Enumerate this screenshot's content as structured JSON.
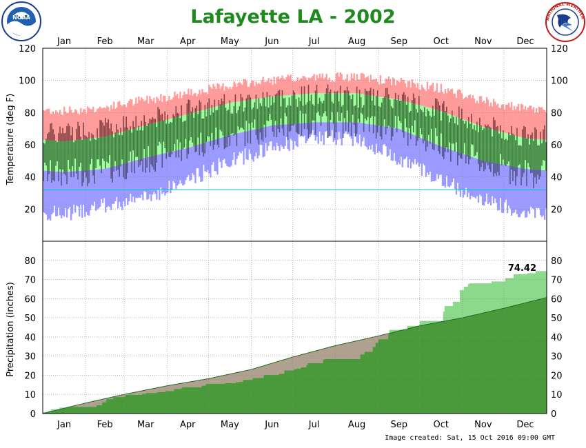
{
  "title": "Lafayette LA - 2002",
  "footer": "Image created: Sat, 15 Oct 2016 09:00 GMT",
  "logos": {
    "noaa": {
      "text": "NOAA",
      "icon": "noaa-logo-icon"
    },
    "nws": {
      "text": "NATIONAL WEATHER SERVICE",
      "icon": "nws-logo-icon"
    }
  },
  "chart_data": [
    {
      "type": "bar",
      "name": "temperature",
      "ylabel": "Temperature (deg F)",
      "ylim": [
        0,
        120
      ],
      "yticks": [
        20,
        40,
        60,
        80,
        100,
        120
      ],
      "months": [
        "Jan",
        "Feb",
        "Mar",
        "Apr",
        "May",
        "Jun",
        "Jul",
        "Aug",
        "Sep",
        "Oct",
        "Nov",
        "Dec"
      ],
      "grid": true,
      "freezing_line": 32,
      "colors": {
        "record_high": "#ff9b9b",
        "normal": "#a0ffa0",
        "record_low": "#9a9aff",
        "observed_low_dark": "#555588",
        "observed_high_dark": "#884444",
        "observed_normal": "#3c7a3c",
        "freeze_line": "#00c8c8"
      },
      "monthly_normals": {
        "normal_high": [
          62,
          65,
          72,
          79,
          86,
          90,
          92,
          92,
          88,
          81,
          71,
          64
        ],
        "normal_low": [
          43,
          45,
          52,
          58,
          66,
          72,
          74,
          74,
          70,
          59,
          50,
          45
        ],
        "record_high": [
          81,
          83,
          88,
          92,
          97,
          100,
          102,
          102,
          99,
          95,
          87,
          82
        ],
        "record_low": [
          17,
          22,
          27,
          38,
          50,
          58,
          65,
          64,
          52,
          38,
          26,
          18
        ],
        "observed_high": [
          68,
          70,
          75,
          82,
          85,
          89,
          91,
          90,
          88,
          82,
          72,
          65
        ],
        "observed_low": [
          42,
          44,
          50,
          59,
          65,
          71,
          73,
          73,
          70,
          61,
          48,
          42
        ]
      }
    },
    {
      "type": "area",
      "name": "precipitation",
      "ylabel": "Precipitation (inches)",
      "ylim": [
        0,
        90
      ],
      "yticks": [
        0,
        10,
        20,
        30,
        40,
        50,
        60,
        70,
        80
      ],
      "grid": true,
      "end_label": "74.42",
      "colors": {
        "observed": "#8cd98c",
        "normal": "#4a9a3c",
        "deficit": "#b0a090"
      },
      "month_end_observed": [
        3.5,
        8.6,
        11.8,
        15.5,
        17.6,
        22.5,
        28.5,
        37.0,
        45.8,
        64.5,
        69.0,
        74.42
      ],
      "month_end_normal": [
        5.5,
        10.0,
        14.5,
        18.2,
        23.0,
        29.5,
        35.5,
        40.5,
        45.8,
        50.0,
        55.0,
        60.6
      ]
    }
  ]
}
